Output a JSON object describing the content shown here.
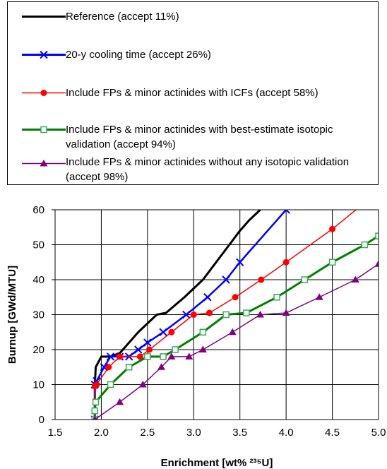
{
  "chart_data": {
    "type": "line",
    "xlabel": "Enrichment [wt% ²³⁵U]",
    "ylabel": "Burnup [GWd/MTU]",
    "xlim": [
      1.5,
      5.0
    ],
    "ylim": [
      0,
      60
    ],
    "x_ticks": [
      "1.5",
      "2.0",
      "2.5",
      "3.0",
      "3.5",
      "4.0",
      "4.5",
      "5.0"
    ],
    "y_ticks": [
      "0",
      "10",
      "20",
      "30",
      "40",
      "50",
      "60"
    ],
    "grid": true,
    "legend_position": "top",
    "series": [
      {
        "name": "Reference (accept 11%)",
        "color": "#000000",
        "marker": "none",
        "points": [
          [
            1.93,
            0
          ],
          [
            1.93,
            10
          ],
          [
            1.94,
            15
          ],
          [
            2.0,
            18
          ],
          [
            2.1,
            18
          ],
          [
            2.2,
            19
          ],
          [
            2.4,
            25
          ],
          [
            2.6,
            30
          ],
          [
            2.7,
            30.5
          ],
          [
            2.9,
            35
          ],
          [
            3.1,
            40
          ],
          [
            3.3,
            47
          ],
          [
            3.5,
            54
          ],
          [
            3.6,
            57
          ],
          [
            3.8,
            62
          ]
        ]
      },
      {
        "name": "20-y cooling time (accept 26%)",
        "color": "#0000ff",
        "marker": "x",
        "points": [
          [
            1.93,
            0
          ],
          [
            1.93,
            10
          ],
          [
            1.95,
            11
          ],
          [
            2.03,
            15
          ],
          [
            2.1,
            18
          ],
          [
            2.2,
            18
          ],
          [
            2.3,
            18
          ],
          [
            2.4,
            20
          ],
          [
            2.5,
            22
          ],
          [
            2.67,
            25
          ],
          [
            2.92,
            30
          ],
          [
            3.15,
            35
          ],
          [
            3.35,
            40
          ],
          [
            3.5,
            45
          ],
          [
            4.0,
            60
          ]
        ]
      },
      {
        "name": "Include FPs & minor actinides with ICFs (accept 58%)",
        "color": "#ff0000",
        "marker": "circle",
        "points": [
          [
            1.93,
            0
          ],
          [
            1.93,
            9.5
          ],
          [
            1.95,
            10
          ],
          [
            2.08,
            15
          ],
          [
            2.2,
            18
          ],
          [
            2.42,
            18
          ],
          [
            2.52,
            20
          ],
          [
            2.76,
            25
          ],
          [
            3.0,
            30
          ],
          [
            3.17,
            30.5
          ],
          [
            3.45,
            35
          ],
          [
            3.73,
            40
          ],
          [
            4.0,
            45
          ],
          [
            4.5,
            54.5
          ],
          [
            4.85,
            62
          ]
        ]
      },
      {
        "name": "Include FPs & minor actinides with best-estimate isotopic validation (accept 94%)",
        "color": "#008000",
        "marker": "square-open",
        "points": [
          [
            1.93,
            0
          ],
          [
            1.93,
            2.5
          ],
          [
            1.94,
            5
          ],
          [
            2.1,
            10
          ],
          [
            2.3,
            15
          ],
          [
            2.5,
            18
          ],
          [
            2.67,
            18
          ],
          [
            2.8,
            20
          ],
          [
            3.1,
            25
          ],
          [
            3.35,
            30
          ],
          [
            3.57,
            30.5
          ],
          [
            3.9,
            35
          ],
          [
            4.2,
            40
          ],
          [
            4.5,
            45
          ],
          [
            4.85,
            50
          ],
          [
            5.0,
            52.5
          ]
        ]
      },
      {
        "name": "Include FPs & minor actinides without any isotopic validation (accept 98%)",
        "color": "#800080",
        "marker": "triangle",
        "points": [
          [
            1.93,
            0
          ],
          [
            2.2,
            5
          ],
          [
            2.45,
            10
          ],
          [
            2.65,
            15
          ],
          [
            2.76,
            18
          ],
          [
            2.95,
            18
          ],
          [
            3.1,
            20
          ],
          [
            3.42,
            25
          ],
          [
            3.72,
            30
          ],
          [
            4.0,
            30.5
          ],
          [
            4.36,
            35
          ],
          [
            4.75,
            40
          ],
          [
            5.0,
            44.5
          ]
        ]
      }
    ]
  }
}
